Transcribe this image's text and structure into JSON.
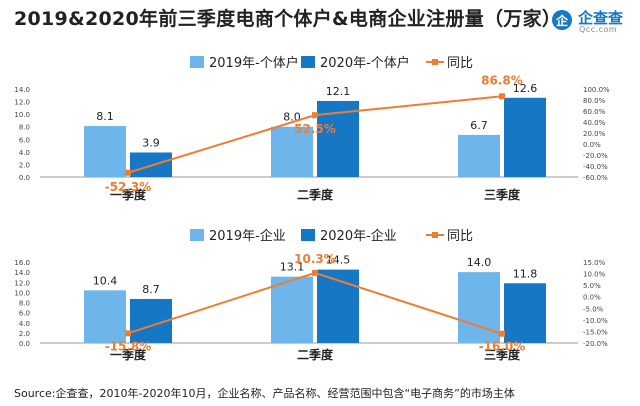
{
  "title": "2019&2020年前三季度电商个体户&电商企业注册量（万家）",
  "brand": {
    "name": "企查查",
    "sub": "Qcc.com",
    "logo_char": "企"
  },
  "source": "Source:企查查，2010年-2020年10月，企业名称、产品名称、经营范围中包含“电子商务”的市场主体",
  "colors": {
    "series_2019": "#6eb5ec",
    "series_2020": "#1677c4",
    "yoy": "#ed7d31"
  },
  "chart_data": [
    {
      "type": "bar",
      "categories": [
        "一季度",
        "二季度",
        "三季度"
      ],
      "series": [
        {
          "name": "2019年-个体户",
          "values": [
            8.1,
            8.0,
            6.7
          ]
        },
        {
          "name": "2020年-个体户",
          "values": [
            3.9,
            12.1,
            12.6
          ]
        }
      ],
      "line_series": {
        "name": "同比",
        "values": [
          -52.3,
          52.5,
          86.8
        ],
        "labels": [
          "-52.3%",
          "52.5%",
          "86.8%"
        ]
      },
      "ylim": [
        0,
        14
      ],
      "yticks": [
        "0.0",
        "2.0",
        "4.0",
        "6.0",
        "8.0",
        "10.0",
        "12.0",
        "14.0"
      ],
      "y2lim": [
        -60,
        100
      ],
      "y2ticks": [
        "-60.0%",
        "-40.0%",
        "-20.0%",
        "0.0%",
        "20.0%",
        "40.0%",
        "60.0%",
        "80.0%",
        "100.0%"
      ],
      "legend": "top-center"
    },
    {
      "type": "bar",
      "categories": [
        "一季度",
        "二季度",
        "三季度"
      ],
      "series": [
        {
          "name": "2019年-企业",
          "values": [
            10.4,
            13.1,
            14.0
          ]
        },
        {
          "name": "2020年-企业",
          "values": [
            8.7,
            14.5,
            11.8
          ]
        }
      ],
      "line_series": {
        "name": "同比",
        "values": [
          -15.8,
          10.3,
          -16.0
        ],
        "labels": [
          "-15.8%",
          "10.3%",
          "-16.0%"
        ]
      },
      "ylim": [
        0,
        16
      ],
      "yticks": [
        "0.0",
        "2.0",
        "4.0",
        "6.0",
        "8.0",
        "10.0",
        "12.0",
        "14.0",
        "16.0"
      ],
      "y2lim": [
        -20,
        15
      ],
      "y2ticks": [
        "-20.0%",
        "-15.0%",
        "-10.0%",
        "-5.0%",
        "0.0%",
        "5.0%",
        "10.0%",
        "15.0%"
      ],
      "legend": "top-center"
    }
  ]
}
